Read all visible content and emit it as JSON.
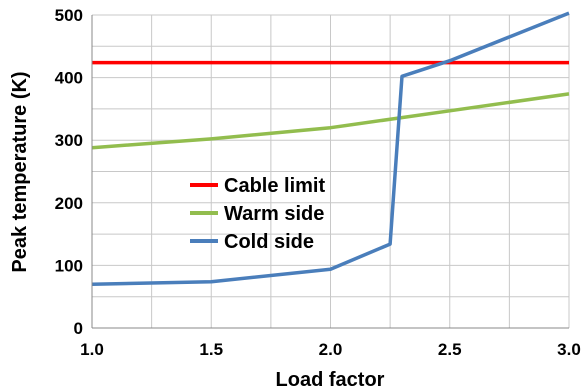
{
  "chart_data": {
    "type": "line",
    "xlabel": "Load factor",
    "ylabel": "Peak temperature (K)",
    "xlim": [
      1.0,
      3.0
    ],
    "ylim": [
      0,
      500
    ],
    "x_ticks": [
      "1.0",
      "1.5",
      "2.0",
      "2.5",
      "3.0"
    ],
    "y_ticks": [
      "0",
      "100",
      "200",
      "300",
      "400",
      "500"
    ],
    "grid": true,
    "legend_position": "center-left",
    "series": [
      {
        "name": "Cable limit",
        "color": "#ff0000",
        "x": [
          1.0,
          3.0
        ],
        "y": [
          424,
          424
        ]
      },
      {
        "name": "Warm side",
        "color": "#92bd4e",
        "x": [
          1.0,
          1.5,
          2.0,
          2.5,
          3.0
        ],
        "y": [
          288,
          302,
          320,
          347,
          374
        ]
      },
      {
        "name": "Cold side",
        "color": "#4a7ebb",
        "x": [
          1.0,
          1.5,
          2.0,
          2.25,
          2.3,
          2.5,
          3.0
        ],
        "y": [
          70,
          74,
          94,
          134,
          402,
          427,
          503
        ]
      }
    ]
  }
}
